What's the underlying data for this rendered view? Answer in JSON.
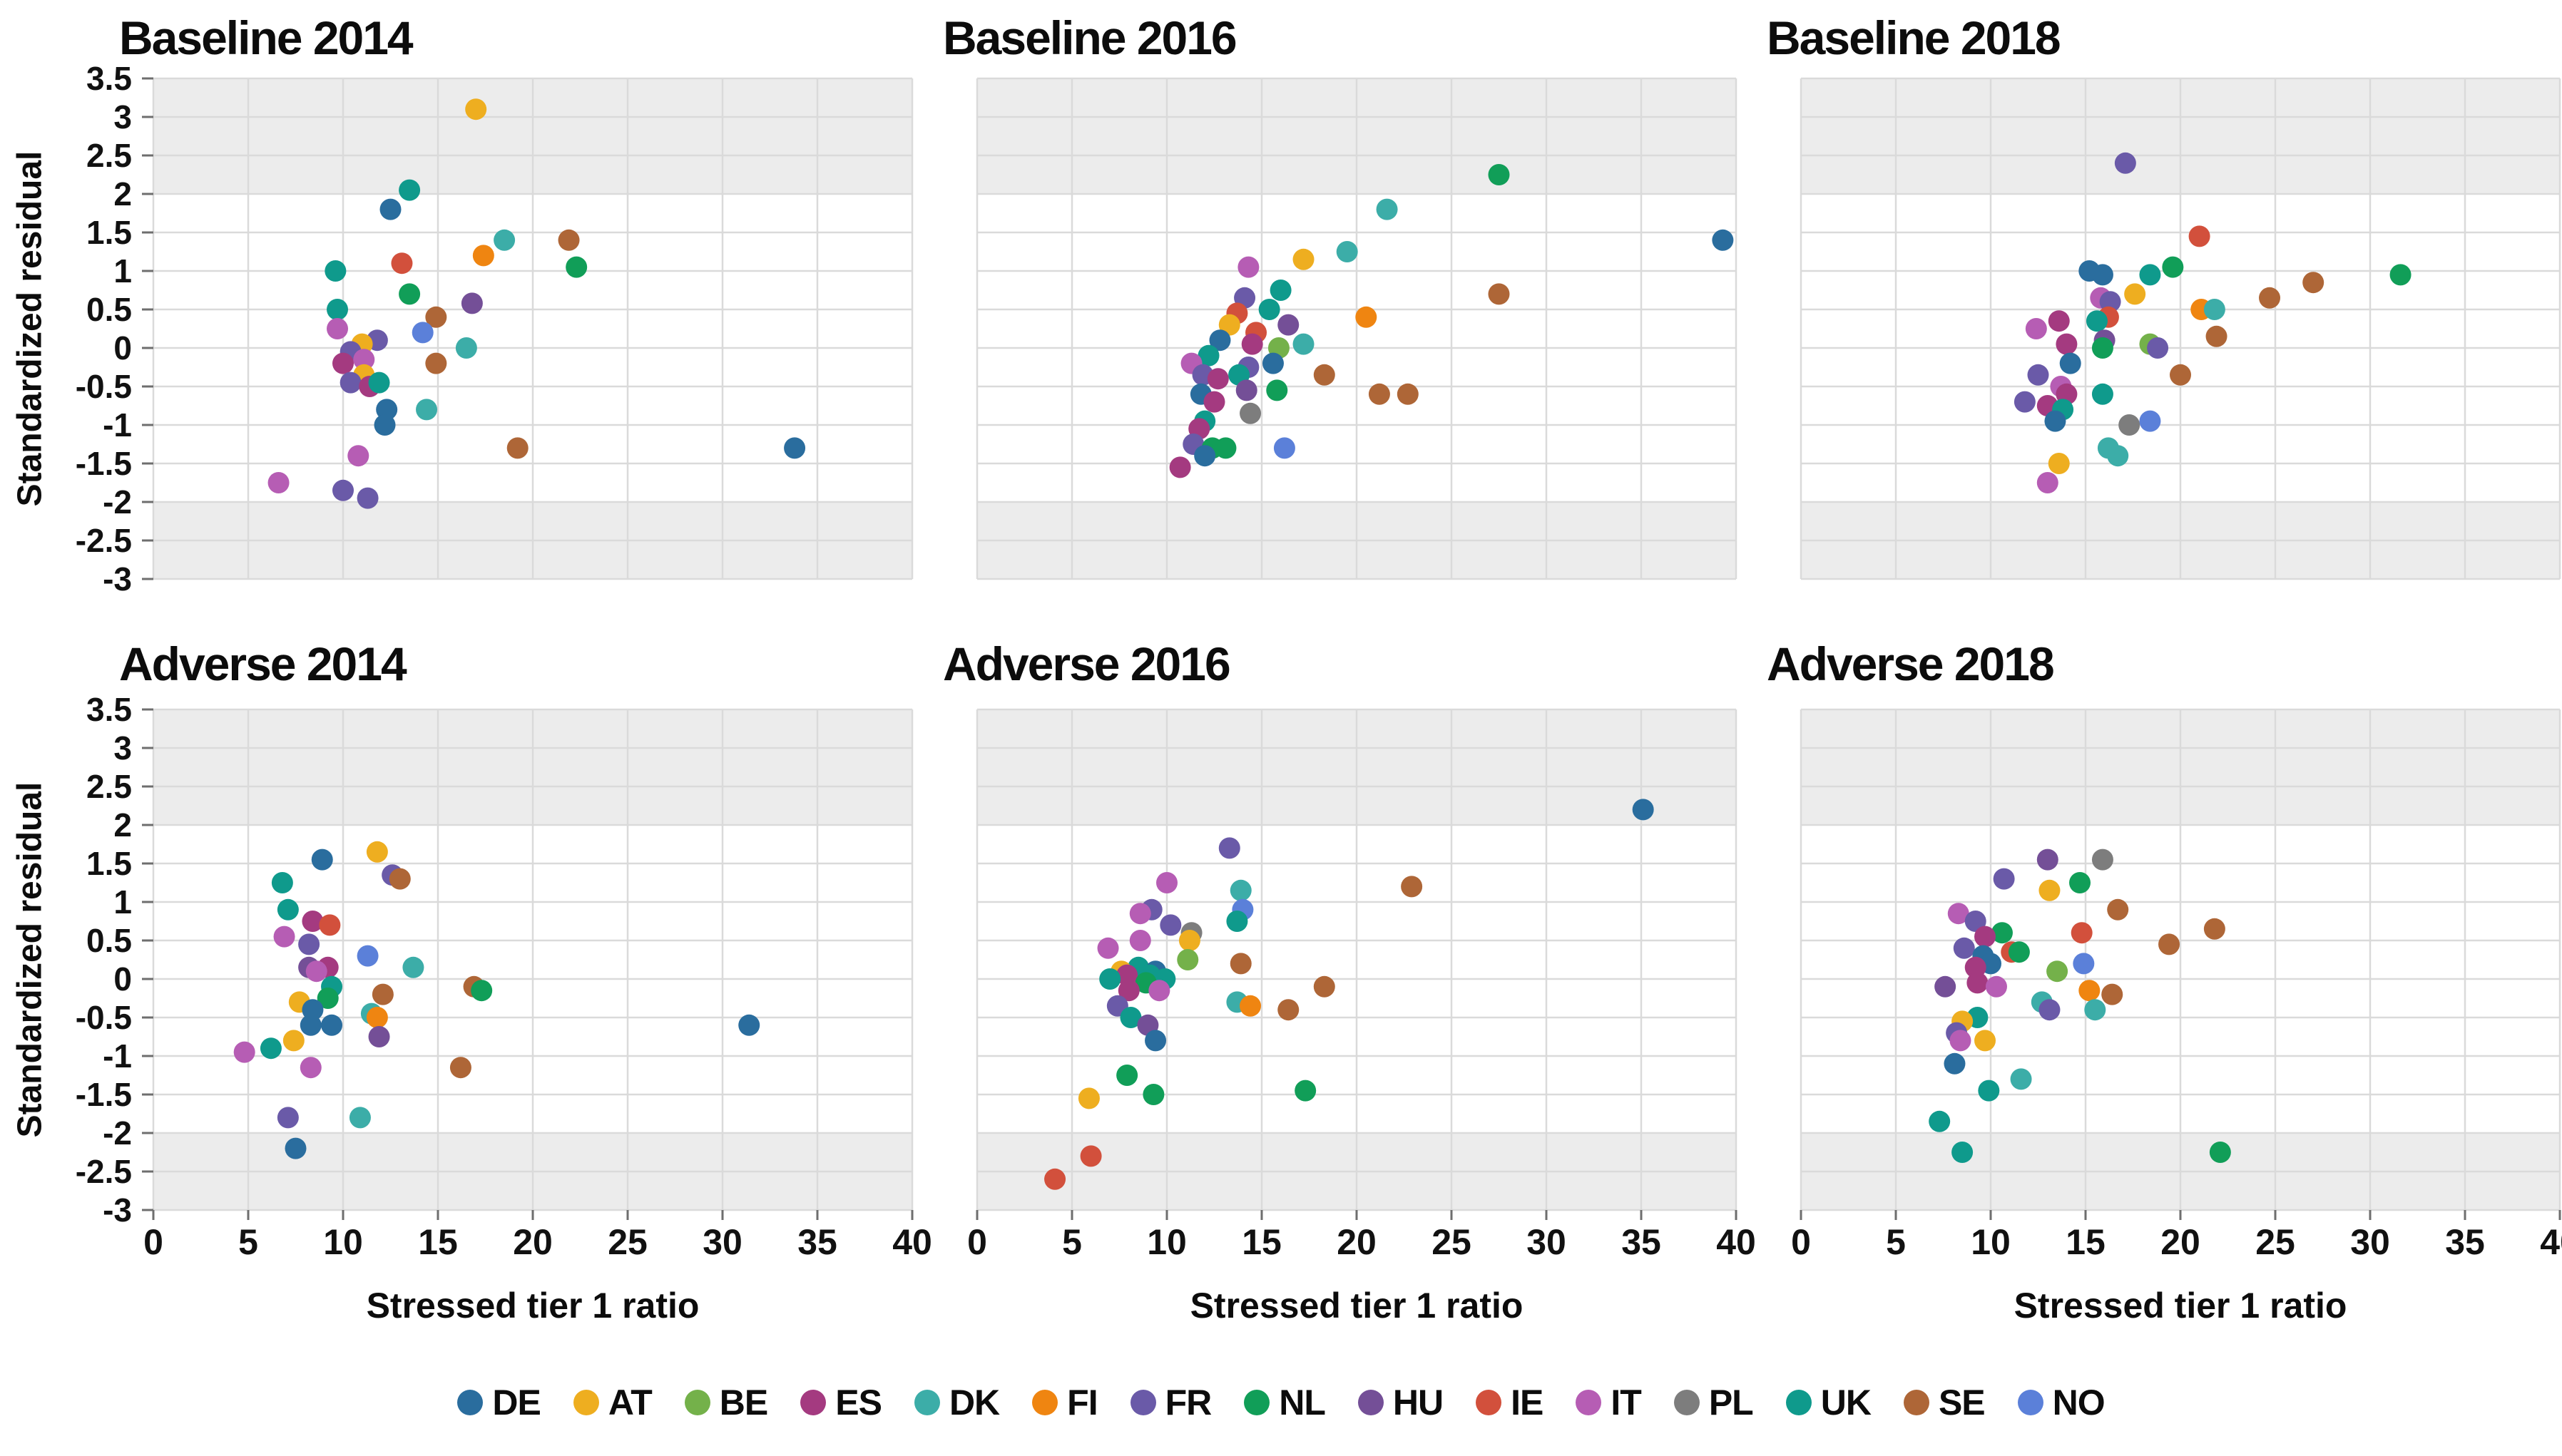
{
  "figure": {
    "y_axis_label": "Standardized residual",
    "x_axis_label": "Stressed tier 1 ratio",
    "background_color": "#ffffff",
    "band_color": "#ececec",
    "grid_color": "#dadada",
    "tick_color": "#6e6e6e",
    "text_color": "#0c0c0c"
  },
  "legend": [
    {
      "code": "DE",
      "color": "#2a6d9e"
    },
    {
      "code": "AT",
      "color": "#eeae20"
    },
    {
      "code": "BE",
      "color": "#74b14a"
    },
    {
      "code": "ES",
      "color": "#a43a80"
    },
    {
      "code": "DK",
      "color": "#3cada8"
    },
    {
      "code": "FI",
      "color": "#ef8511"
    },
    {
      "code": "FR",
      "color": "#6a5aa8"
    },
    {
      "code": "NL",
      "color": "#119e58"
    },
    {
      "code": "HU",
      "color": "#744f97"
    },
    {
      "code": "IE",
      "color": "#d2503c"
    },
    {
      "code": "IT",
      "color": "#b65db4"
    },
    {
      "code": "PL",
      "color": "#7d7d7d"
    },
    {
      "code": "UK",
      "color": "#0f9a8c"
    },
    {
      "code": "SE",
      "color": "#ae6637"
    },
    {
      "code": "NO",
      "color": "#5b80d9"
    }
  ],
  "axes": {
    "x": {
      "min": 0,
      "max": 40,
      "tick_values": [
        0,
        5,
        10,
        15,
        20,
        25,
        30,
        35,
        40
      ],
      "tick_labels": [
        "0",
        "5",
        "10",
        "15",
        "20",
        "25",
        "30",
        "35",
        "40"
      ]
    },
    "y": {
      "min": -3,
      "max": 3.5,
      "tick_values": [
        3.5,
        3,
        2.5,
        2,
        1.5,
        1,
        0.5,
        0,
        -0.5,
        -1,
        -1.5,
        -2,
        -2.5,
        -3
      ],
      "tick_labels": [
        "3.5",
        "3",
        "2.5",
        "2",
        "1.5",
        "1",
        "0.5",
        "0",
        "-0.5",
        "-1",
        "-1.5",
        "-2",
        "-2.5",
        "-3"
      ]
    },
    "shaded_above": 2,
    "shaded_below": -2,
    "grid": true,
    "legend_position": "bottom-center"
  },
  "chart_data": [
    {
      "type": "scatter",
      "title": "Baseline 2014",
      "xlabel": "Stressed tier 1 ratio",
      "ylabel": "Standardized residual",
      "xlim": [
        0,
        40
      ],
      "ylim": [
        -3,
        3.5
      ],
      "points": [
        [
          "AT",
          17.0,
          3.1
        ],
        [
          "UK",
          13.5,
          2.05
        ],
        [
          "DE",
          12.5,
          1.8
        ],
        [
          "DK",
          18.5,
          1.4
        ],
        [
          "SE",
          21.9,
          1.4
        ],
        [
          "FI",
          17.4,
          1.2
        ],
        [
          "IE",
          13.1,
          1.1
        ],
        [
          "NL",
          22.3,
          1.05
        ],
        [
          "UK",
          9.6,
          1.0
        ],
        [
          "NL",
          13.5,
          0.7
        ],
        [
          "HU",
          16.8,
          0.58
        ],
        [
          "UK",
          9.7,
          0.5
        ],
        [
          "SE",
          14.9,
          0.4
        ],
        [
          "IT",
          9.7,
          0.25
        ],
        [
          "NO",
          14.2,
          0.2
        ],
        [
          "DK",
          16.5,
          0.0
        ],
        [
          "FR",
          11.8,
          0.1
        ],
        [
          "AT",
          11.0,
          0.05
        ],
        [
          "FR",
          10.4,
          -0.05
        ],
        [
          "ES",
          10.0,
          -0.2
        ],
        [
          "IT",
          11.1,
          -0.15
        ],
        [
          "SE",
          14.9,
          -0.2
        ],
        [
          "AT",
          11.1,
          -0.35
        ],
        [
          "FR",
          10.4,
          -0.45
        ],
        [
          "ES",
          11.4,
          -0.5
        ],
        [
          "UK",
          11.9,
          -0.45
        ],
        [
          "DE",
          12.3,
          -0.8
        ],
        [
          "DK",
          14.4,
          -0.8
        ],
        [
          "DE",
          12.2,
          -1.0
        ],
        [
          "SE",
          19.2,
          -1.3
        ],
        [
          "DE",
          33.8,
          -1.3
        ],
        [
          "IT",
          10.8,
          -1.4
        ],
        [
          "IT",
          6.6,
          -1.75
        ],
        [
          "FR",
          10.0,
          -1.85
        ],
        [
          "FR",
          11.3,
          -1.95
        ]
      ]
    },
    {
      "type": "scatter",
      "title": "Baseline 2016",
      "xlabel": "Stressed tier 1 ratio",
      "ylabel": "Standardized residual",
      "xlim": [
        0,
        40
      ],
      "ylim": [
        -3,
        3.5
      ],
      "points": [
        [
          "NL",
          27.5,
          2.25
        ],
        [
          "DK",
          21.6,
          1.8
        ],
        [
          "DE",
          39.3,
          1.4
        ],
        [
          "DK",
          19.5,
          1.25
        ],
        [
          "AT",
          17.2,
          1.15
        ],
        [
          "IT",
          14.3,
          1.05
        ],
        [
          "UK",
          16.0,
          0.75
        ],
        [
          "SE",
          27.5,
          0.7
        ],
        [
          "FR",
          14.1,
          0.65
        ],
        [
          "UK",
          15.4,
          0.5
        ],
        [
          "IE",
          13.7,
          0.45
        ],
        [
          "FI",
          20.5,
          0.4
        ],
        [
          "AT",
          13.3,
          0.3
        ],
        [
          "HU",
          16.4,
          0.3
        ],
        [
          "IE",
          14.7,
          0.2
        ],
        [
          "DE",
          12.8,
          0.1
        ],
        [
          "ES",
          14.5,
          0.05
        ],
        [
          "DK",
          17.2,
          0.05
        ],
        [
          "BE",
          15.9,
          0.0
        ],
        [
          "UK",
          12.2,
          -0.1
        ],
        [
          "DE",
          15.6,
          -0.2
        ],
        [
          "IT",
          11.3,
          -0.2
        ],
        [
          "FR",
          14.3,
          -0.25
        ],
        [
          "FR",
          11.9,
          -0.35
        ],
        [
          "UK",
          13.8,
          -0.35
        ],
        [
          "SE",
          18.3,
          -0.35
        ],
        [
          "ES",
          12.7,
          -0.4
        ],
        [
          "HU",
          14.2,
          -0.55
        ],
        [
          "NL",
          15.8,
          -0.55
        ],
        [
          "SE",
          21.2,
          -0.6
        ],
        [
          "SE",
          22.7,
          -0.6
        ],
        [
          "DE",
          11.8,
          -0.6
        ],
        [
          "ES",
          12.5,
          -0.7
        ],
        [
          "PL",
          14.4,
          -0.85
        ],
        [
          "UK",
          12.0,
          -0.95
        ],
        [
          "ES",
          11.7,
          -1.05
        ],
        [
          "FR",
          11.4,
          -1.25
        ],
        [
          "NL",
          12.4,
          -1.3
        ],
        [
          "NL",
          13.1,
          -1.3
        ],
        [
          "NO",
          16.2,
          -1.3
        ],
        [
          "DE",
          12.0,
          -1.4
        ],
        [
          "ES",
          10.7,
          -1.55
        ]
      ]
    },
    {
      "type": "scatter",
      "title": "Baseline 2018",
      "xlabel": "Stressed tier 1 ratio",
      "ylabel": "Standardized residual",
      "xlim": [
        0,
        40
      ],
      "ylim": [
        -3,
        3.5
      ],
      "points": [
        [
          "FR",
          17.1,
          2.4
        ],
        [
          "IE",
          21.0,
          1.45
        ],
        [
          "NL",
          19.6,
          1.05
        ],
        [
          "DE",
          15.2,
          1.0
        ],
        [
          "DE",
          15.9,
          0.95
        ],
        [
          "UK",
          18.4,
          0.95
        ],
        [
          "NL",
          31.6,
          0.95
        ],
        [
          "SE",
          27.0,
          0.85
        ],
        [
          "AT",
          17.6,
          0.7
        ],
        [
          "IT",
          15.8,
          0.65
        ],
        [
          "SE",
          24.7,
          0.65
        ],
        [
          "FR",
          16.3,
          0.6
        ],
        [
          "FI",
          21.1,
          0.5
        ],
        [
          "DK",
          21.8,
          0.5
        ],
        [
          "IE",
          16.2,
          0.4
        ],
        [
          "ES",
          13.6,
          0.35
        ],
        [
          "UK",
          15.6,
          0.35
        ],
        [
          "IT",
          12.4,
          0.25
        ],
        [
          "SE",
          21.9,
          0.15
        ],
        [
          "HU",
          16.0,
          0.1
        ],
        [
          "ES",
          14.0,
          0.05
        ],
        [
          "BE",
          18.4,
          0.05
        ],
        [
          "FR",
          18.8,
          0.0
        ],
        [
          "NL",
          15.9,
          0.0
        ],
        [
          "DE",
          14.2,
          -0.2
        ],
        [
          "FR",
          12.5,
          -0.35
        ],
        [
          "SE",
          20.0,
          -0.35
        ],
        [
          "IT",
          13.7,
          -0.5
        ],
        [
          "ES",
          14.0,
          -0.6
        ],
        [
          "UK",
          15.9,
          -0.6
        ],
        [
          "FR",
          11.8,
          -0.7
        ],
        [
          "ES",
          13.0,
          -0.75
        ],
        [
          "UK",
          13.8,
          -0.8
        ],
        [
          "DE",
          13.4,
          -0.95
        ],
        [
          "NO",
          18.4,
          -0.95
        ],
        [
          "PL",
          17.3,
          -1.0
        ],
        [
          "DK",
          16.2,
          -1.3
        ],
        [
          "DK",
          16.7,
          -1.4
        ],
        [
          "AT",
          13.6,
          -1.5
        ],
        [
          "IT",
          13.0,
          -1.75
        ]
      ]
    },
    {
      "type": "scatter",
      "title": "Adverse 2014",
      "xlabel": "Stressed tier 1 ratio",
      "ylabel": "Standardized residual",
      "xlim": [
        0,
        40
      ],
      "ylim": [
        -3,
        3.5
      ],
      "points": [
        [
          "AT",
          11.8,
          1.65
        ],
        [
          "DE",
          8.9,
          1.55
        ],
        [
          "FR",
          12.6,
          1.35
        ],
        [
          "SE",
          13.0,
          1.3
        ],
        [
          "UK",
          6.8,
          1.25
        ],
        [
          "UK",
          7.1,
          0.9
        ],
        [
          "ES",
          8.4,
          0.75
        ],
        [
          "IE",
          9.3,
          0.7
        ],
        [
          "IT",
          6.9,
          0.55
        ],
        [
          "FR",
          8.2,
          0.45
        ],
        [
          "NO",
          11.3,
          0.3
        ],
        [
          "HU",
          8.2,
          0.15
        ],
        [
          "ES",
          9.2,
          0.15
        ],
        [
          "DK",
          13.7,
          0.15
        ],
        [
          "IT",
          8.6,
          0.1
        ],
        [
          "UK",
          9.4,
          -0.1
        ],
        [
          "SE",
          16.9,
          -0.1
        ],
        [
          "NL",
          17.3,
          -0.15
        ],
        [
          "SE",
          12.1,
          -0.2
        ],
        [
          "NL",
          9.2,
          -0.25
        ],
        [
          "AT",
          7.7,
          -0.3
        ],
        [
          "DE",
          8.4,
          -0.4
        ],
        [
          "DK",
          11.5,
          -0.45
        ],
        [
          "FI",
          11.8,
          -0.5
        ],
        [
          "DE",
          8.3,
          -0.6
        ],
        [
          "DE",
          9.4,
          -0.6
        ],
        [
          "DE",
          31.4,
          -0.6
        ],
        [
          "HU",
          11.9,
          -0.75
        ],
        [
          "AT",
          7.4,
          -0.8
        ],
        [
          "UK",
          6.2,
          -0.9
        ],
        [
          "IT",
          4.8,
          -0.95
        ],
        [
          "IT",
          8.3,
          -1.15
        ],
        [
          "SE",
          16.2,
          -1.15
        ],
        [
          "FR",
          7.1,
          -1.8
        ],
        [
          "DK",
          10.9,
          -1.8
        ],
        [
          "DE",
          7.5,
          -2.2
        ]
      ]
    },
    {
      "type": "scatter",
      "title": "Adverse 2016",
      "xlabel": "Stressed tier 1 ratio",
      "ylabel": "Standardized residual",
      "xlim": [
        0,
        40
      ],
      "ylim": [
        -3,
        3.5
      ],
      "points": [
        [
          "DE",
          35.1,
          2.2
        ],
        [
          "FR",
          13.3,
          1.7
        ],
        [
          "IT",
          10.0,
          1.25
        ],
        [
          "SE",
          22.9,
          1.2
        ],
        [
          "DK",
          13.9,
          1.15
        ],
        [
          "FR",
          9.2,
          0.9
        ],
        [
          "NO",
          14.0,
          0.9
        ],
        [
          "IT",
          8.6,
          0.85
        ],
        [
          "UK",
          13.7,
          0.75
        ],
        [
          "FR",
          10.2,
          0.7
        ],
        [
          "PL",
          11.3,
          0.6
        ],
        [
          "AT",
          11.2,
          0.5
        ],
        [
          "IT",
          8.6,
          0.5
        ],
        [
          "IT",
          6.9,
          0.4
        ],
        [
          "BE",
          11.1,
          0.25
        ],
        [
          "SE",
          13.9,
          0.2
        ],
        [
          "UK",
          8.5,
          0.15
        ],
        [
          "AT",
          7.6,
          0.1
        ],
        [
          "DE",
          9.4,
          0.1
        ],
        [
          "ES",
          7.9,
          0.05
        ],
        [
          "UK",
          9.1,
          0.05
        ],
        [
          "UK",
          9.9,
          0.0
        ],
        [
          "UK",
          7.0,
          0.0
        ],
        [
          "NL",
          8.9,
          -0.05
        ],
        [
          "SE",
          18.3,
          -0.1
        ],
        [
          "ES",
          8.0,
          -0.15
        ],
        [
          "IT",
          9.6,
          -0.15
        ],
        [
          "DK",
          13.7,
          -0.3
        ],
        [
          "FI",
          14.4,
          -0.35
        ],
        [
          "FR",
          7.4,
          -0.35
        ],
        [
          "SE",
          16.4,
          -0.4
        ],
        [
          "UK",
          8.1,
          -0.5
        ],
        [
          "HU",
          9.0,
          -0.6
        ],
        [
          "DE",
          9.4,
          -0.8
        ],
        [
          "NL",
          7.9,
          -1.25
        ],
        [
          "NL",
          9.3,
          -1.5
        ],
        [
          "NL",
          17.3,
          -1.45
        ],
        [
          "AT",
          5.9,
          -1.55
        ],
        [
          "IE",
          6.0,
          -2.3
        ],
        [
          "IE",
          4.1,
          -2.6
        ]
      ]
    },
    {
      "type": "scatter",
      "title": "Adverse 2018",
      "xlabel": "Stressed tier 1 ratio",
      "ylabel": "Standardized residual",
      "xlim": [
        0,
        40
      ],
      "ylim": [
        -3,
        3.5
      ],
      "points": [
        [
          "HU",
          13.0,
          1.55
        ],
        [
          "PL",
          15.9,
          1.55
        ],
        [
          "FR",
          10.7,
          1.3
        ],
        [
          "NL",
          14.7,
          1.25
        ],
        [
          "AT",
          13.1,
          1.15
        ],
        [
          "SE",
          16.7,
          0.9
        ],
        [
          "IT",
          8.3,
          0.85
        ],
        [
          "FR",
          9.2,
          0.75
        ],
        [
          "SE",
          21.8,
          0.65
        ],
        [
          "NL",
          10.6,
          0.6
        ],
        [
          "IE",
          14.8,
          0.6
        ],
        [
          "ES",
          9.7,
          0.55
        ],
        [
          "SE",
          19.4,
          0.45
        ],
        [
          "FR",
          8.6,
          0.4
        ],
        [
          "IE",
          11.1,
          0.35
        ],
        [
          "NL",
          11.5,
          0.35
        ],
        [
          "DE",
          9.6,
          0.3
        ],
        [
          "DE",
          10.0,
          0.2
        ],
        [
          "NO",
          14.9,
          0.2
        ],
        [
          "ES",
          9.2,
          0.15
        ],
        [
          "BE",
          13.5,
          0.1
        ],
        [
          "ES",
          9.3,
          -0.05
        ],
        [
          "HU",
          7.6,
          -0.1
        ],
        [
          "IT",
          10.3,
          -0.1
        ],
        [
          "FI",
          15.2,
          -0.15
        ],
        [
          "SE",
          16.4,
          -0.2
        ],
        [
          "DK",
          12.7,
          -0.3
        ],
        [
          "FR",
          13.1,
          -0.4
        ],
        [
          "DK",
          15.5,
          -0.4
        ],
        [
          "UK",
          9.3,
          -0.5
        ],
        [
          "AT",
          8.5,
          -0.55
        ],
        [
          "FR",
          8.2,
          -0.7
        ],
        [
          "AT",
          9.7,
          -0.8
        ],
        [
          "IT",
          8.4,
          -0.8
        ],
        [
          "DE",
          8.1,
          -1.1
        ],
        [
          "DK",
          11.6,
          -1.3
        ],
        [
          "UK",
          9.9,
          -1.45
        ],
        [
          "UK",
          7.3,
          -1.85
        ],
        [
          "NL",
          22.1,
          -2.25
        ],
        [
          "UK",
          8.5,
          -2.25
        ]
      ]
    }
  ]
}
